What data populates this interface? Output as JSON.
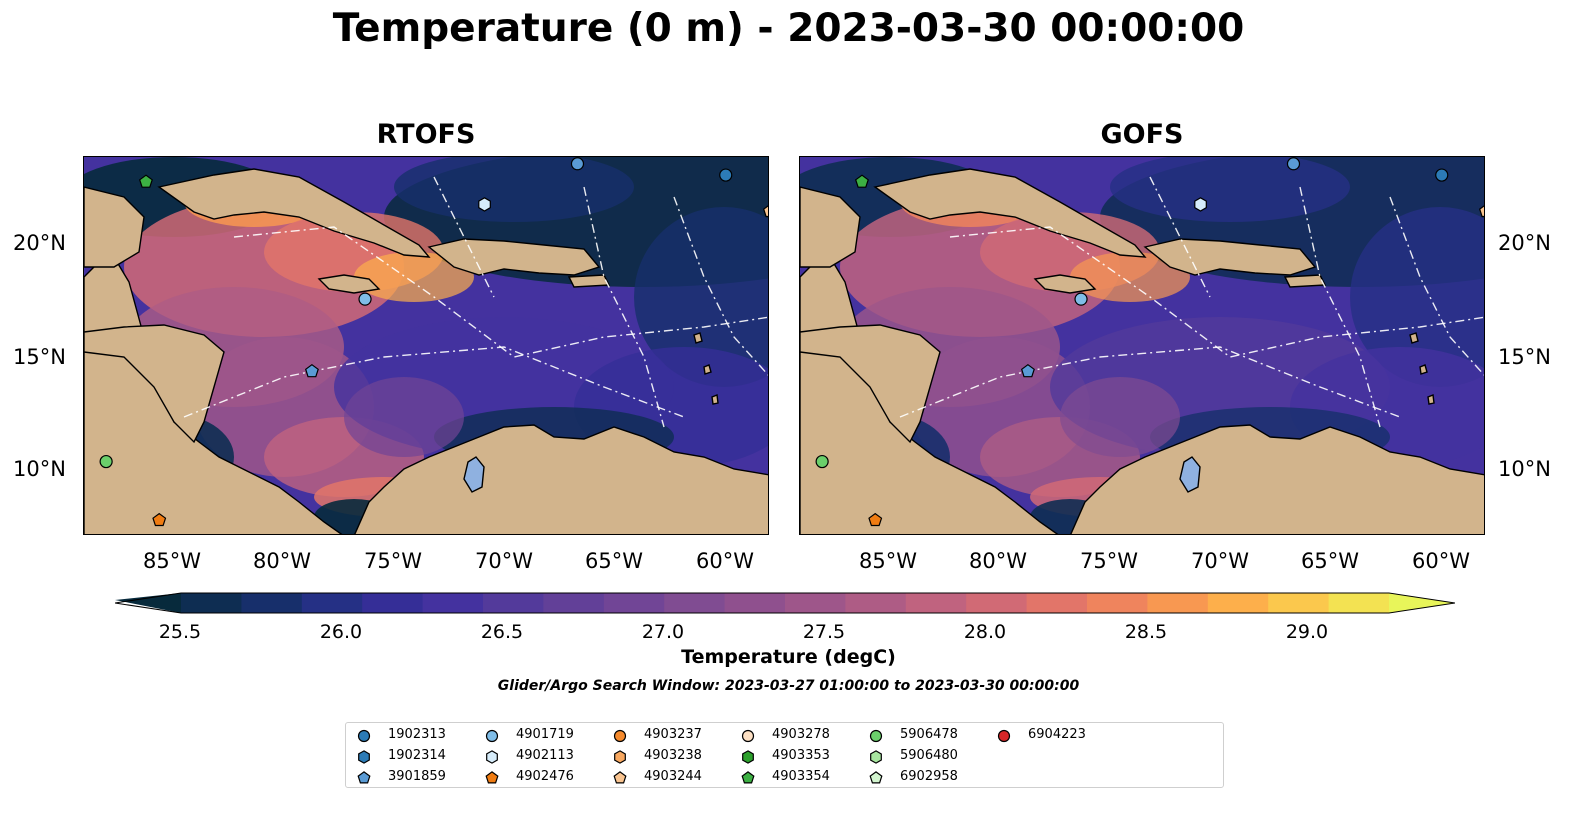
{
  "title": "Temperature (0 m) - 2023-03-30 00:00:00",
  "panels": [
    {
      "title": "RTOFS"
    },
    {
      "title": "GOFS"
    }
  ],
  "axes": {
    "longitude_ticks": [
      "85°W",
      "80°W",
      "75°W",
      "70°W",
      "65°W",
      "60°W"
    ],
    "latitude_ticks": [
      "20°N",
      "15°N",
      "10°N"
    ]
  },
  "map_extent": {
    "lon_min": -89.0,
    "lon_max": -58.0,
    "lat_min": 7.0,
    "lat_max": 23.8
  },
  "colorbar": {
    "label": "Temperature (degC)",
    "ticks": [
      "25.5",
      "26.0",
      "26.5",
      "27.0",
      "27.5",
      "28.0",
      "28.5",
      "29.0"
    ],
    "min": 25.5,
    "max": 29.0,
    "extend": "both",
    "colors": [
      "#072a3c",
      "#0e2d52",
      "#172f6b",
      "#253085",
      "#352e97",
      "#44329f",
      "#533a9b",
      "#624098",
      "#714596",
      "#804c92",
      "#8f508e",
      "#9e568a",
      "#ae5c85",
      "#c0637f",
      "#d16a75",
      "#e27569",
      "#ef845d",
      "#f89851",
      "#fdaf4b",
      "#fbc84d",
      "#f3e252",
      "#e8f55a"
    ]
  },
  "search_window": "Glider/Argo Search Window: 2023-03-27 01:00:00 to 2023-03-30 00:00:00",
  "floats": [
    {
      "id": "1902313",
      "marker": "circle",
      "color": "#2c7bb6",
      "lon": -60.0,
      "lat": 23.0
    },
    {
      "id": "1902314",
      "marker": "hexagon",
      "color": "#2c7bb6",
      "lon": null,
      "lat": null
    },
    {
      "id": "3901859",
      "marker": "pentagon",
      "color": "#5a9bd5",
      "lon": -78.7,
      "lat": 14.3
    },
    {
      "id": "4901719",
      "marker": "circle",
      "color": "#7fbde8",
      "lon": -76.3,
      "lat": 17.5
    },
    {
      "id": "4902113",
      "marker": "hexagon",
      "color": "#d6ecfa",
      "lon": -70.9,
      "lat": 21.7
    },
    {
      "id": "4902476",
      "marker": "pentagon",
      "color": "#f07c12",
      "lon": -85.6,
      "lat": 7.7
    },
    {
      "id": "4903237",
      "marker": "circle",
      "color": "#f58a2d",
      "lon": null,
      "lat": null
    },
    {
      "id": "4903238",
      "marker": "hexagon",
      "color": "#f8a860",
      "lon": null,
      "lat": null
    },
    {
      "id": "4903244",
      "marker": "pentagon",
      "color": "#f9c490",
      "lon": -58.0,
      "lat": 21.4
    },
    {
      "id": "4903278",
      "marker": "circle",
      "color": "#fde0c4",
      "lon": null,
      "lat": null
    },
    {
      "id": "4903353",
      "marker": "hexagon",
      "color": "#2ca02c",
      "lon": null,
      "lat": null
    },
    {
      "id": "4903354",
      "marker": "pentagon",
      "color": "#3cb043",
      "lon": -86.2,
      "lat": 22.7
    },
    {
      "id": "5906478",
      "marker": "circle",
      "color": "#6bcf6b",
      "lon": -88.0,
      "lat": 10.3
    },
    {
      "id": "5906480",
      "marker": "hexagon",
      "color": "#a8e6a0",
      "lon": null,
      "lat": null
    },
    {
      "id": "6902958",
      "marker": "pentagon",
      "color": "#d3f5cf",
      "lon": null,
      "lat": null
    },
    {
      "id": "6904223",
      "marker": "circle",
      "color": "#d62728",
      "lon": null,
      "lat": null
    },
    {
      "id": "extra-1",
      "marker": "circle",
      "color": "#5a9bd5",
      "lon": -66.7,
      "lat": 23.5
    }
  ]
}
